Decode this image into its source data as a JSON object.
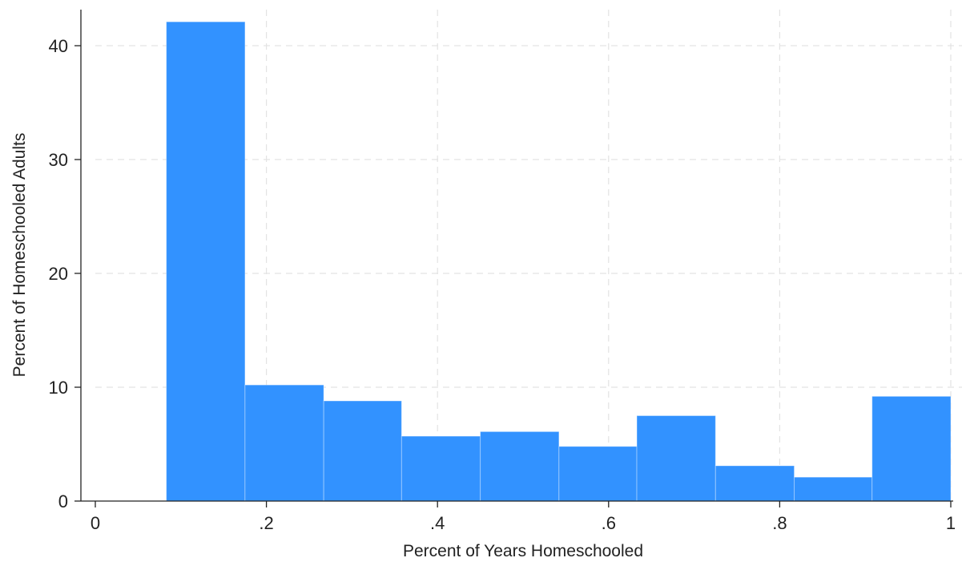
{
  "colors": {
    "bar_fill": "#3292FF",
    "axis": "#222222",
    "grid": "#e3e3e3",
    "background": "#ffffff"
  },
  "chart_data": {
    "type": "bar",
    "subtype": "histogram",
    "title": "",
    "xlabel": "Percent of Years Homeschooled",
    "ylabel": "Percent of Homeschooled Adults",
    "xlim": [
      0,
      1
    ],
    "ylim": [
      0,
      42
    ],
    "grid": true,
    "x_ticks": [
      {
        "value": 0,
        "label": "0"
      },
      {
        "value": 0.2,
        "label": ".2"
      },
      {
        "value": 0.4,
        "label": ".4"
      },
      {
        "value": 0.6,
        "label": ".6"
      },
      {
        "value": 0.8,
        "label": ".8"
      },
      {
        "value": 1,
        "label": "1"
      }
    ],
    "y_ticks": [
      {
        "value": 0,
        "label": "0"
      },
      {
        "value": 10,
        "label": "10"
      },
      {
        "value": 20,
        "label": "20"
      },
      {
        "value": 30,
        "label": "30"
      },
      {
        "value": 40,
        "label": "40"
      }
    ],
    "bins": [
      {
        "x0": 0.083,
        "x1": 0.175,
        "value": 42.1
      },
      {
        "x0": 0.175,
        "x1": 0.267,
        "value": 10.2
      },
      {
        "x0": 0.267,
        "x1": 0.358,
        "value": 8.8
      },
      {
        "x0": 0.358,
        "x1": 0.45,
        "value": 5.7
      },
      {
        "x0": 0.45,
        "x1": 0.542,
        "value": 6.1
      },
      {
        "x0": 0.542,
        "x1": 0.633,
        "value": 4.8
      },
      {
        "x0": 0.633,
        "x1": 0.725,
        "value": 7.5
      },
      {
        "x0": 0.725,
        "x1": 0.817,
        "value": 3.1
      },
      {
        "x0": 0.817,
        "x1": 0.908,
        "value": 2.1
      },
      {
        "x0": 0.908,
        "x1": 1.0,
        "value": 9.2
      }
    ]
  }
}
